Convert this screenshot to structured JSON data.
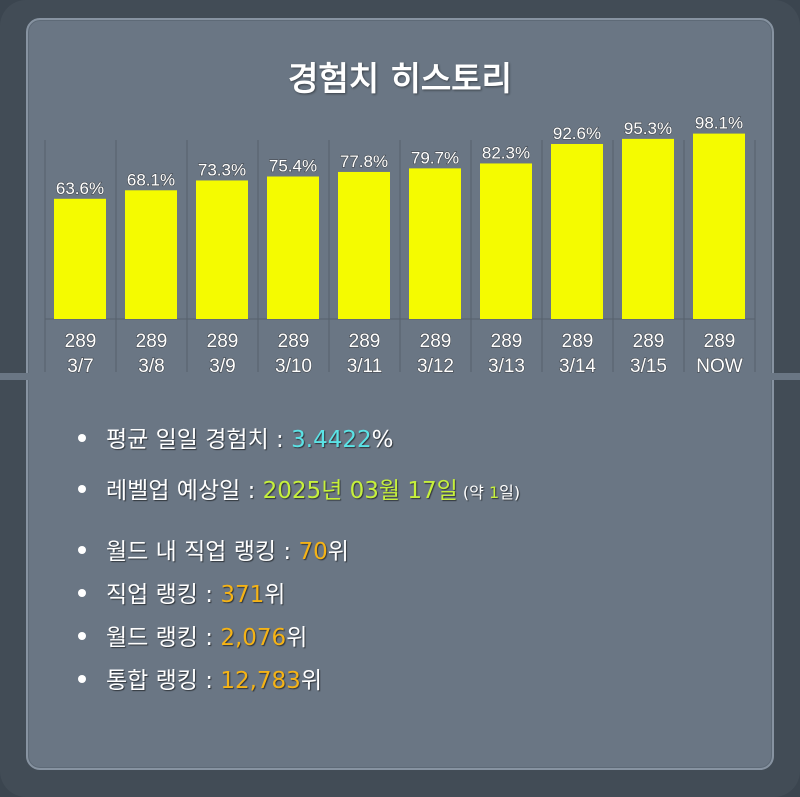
{
  "title": "경험치 히스토리",
  "colors": {
    "bar": "#f5fb00",
    "cyan": "#5be3e6",
    "green": "#c6f03c",
    "orange": "#f5b316"
  },
  "chart_data": {
    "type": "bar",
    "categories": [
      [
        "289",
        "3/7"
      ],
      [
        "289",
        "3/8"
      ],
      [
        "289",
        "3/9"
      ],
      [
        "289",
        "3/10"
      ],
      [
        "289",
        "3/11"
      ],
      [
        "289",
        "3/12"
      ],
      [
        "289",
        "3/13"
      ],
      [
        "289",
        "3/14"
      ],
      [
        "289",
        "3/15"
      ],
      [
        "289",
        "NOW"
      ]
    ],
    "values": [
      63.6,
      68.1,
      73.3,
      75.4,
      77.8,
      79.7,
      82.3,
      92.6,
      95.3,
      98.1
    ],
    "value_labels": [
      "63.6%",
      "68.1%",
      "73.3%",
      "75.4%",
      "77.8%",
      "79.7%",
      "82.3%",
      "92.6%",
      "95.3%",
      "98.1%"
    ],
    "ylim": [
      0,
      100
    ],
    "grid": "vertical separators"
  },
  "stats": {
    "avg_label": "평균 일일 경험치 : ",
    "avg_value": "3.4422",
    "avg_unit": "%",
    "levelup_label": "레벨업 예상일 : ",
    "levelup_value": "2025년 03월 17일",
    "levelup_note_pre": " (약 ",
    "levelup_note_num": "1",
    "levelup_note_post": "일)",
    "world_job_label": "월드 내 직업 랭킹 : ",
    "world_job_value": "70",
    "job_label": "직업 랭킹 : ",
    "job_value": "371",
    "world_label": "월드 랭킹 : ",
    "world_value": "2,076",
    "total_label": "통합 랭킹 : ",
    "total_value": "12,783",
    "rank_unit": "위"
  }
}
